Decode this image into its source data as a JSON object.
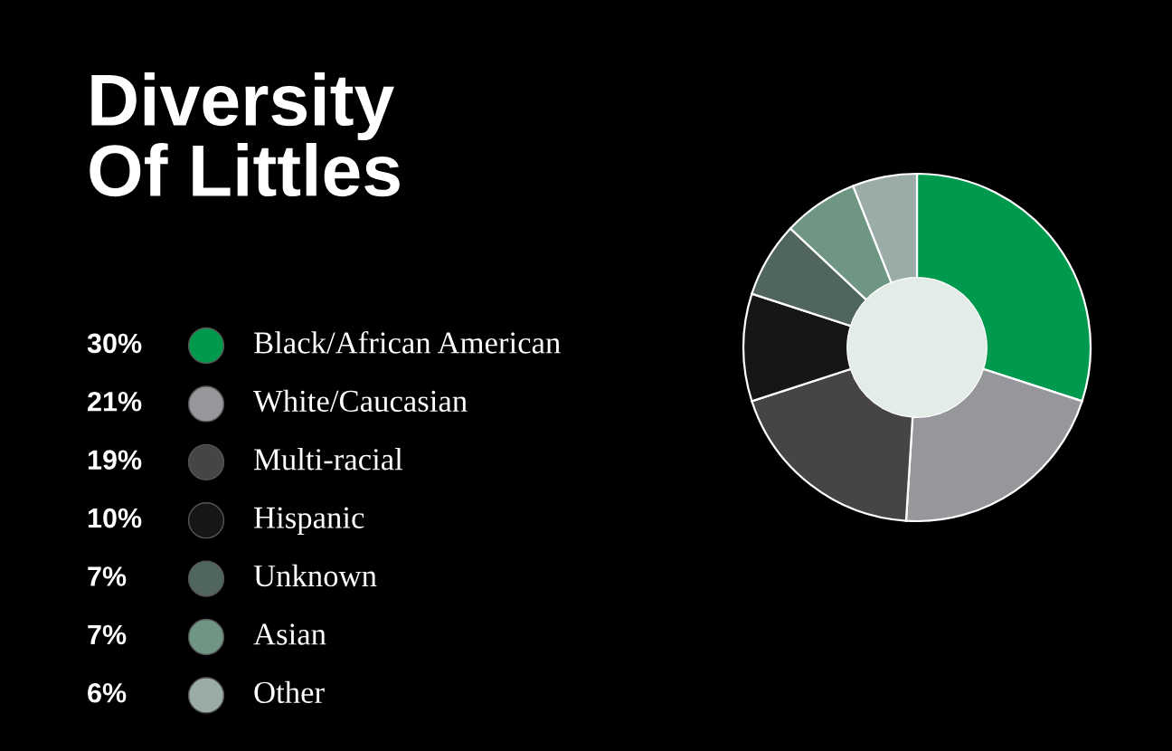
{
  "chart_data": {
    "type": "donut",
    "title": "Diversity\nOf Littles",
    "categories": [
      "Black/African American",
      "White/Caucasian",
      "Multi-racial",
      "Hispanic",
      "Unknown",
      "Asian",
      "Other"
    ],
    "values": [
      30,
      21,
      19,
      10,
      7,
      7,
      6
    ],
    "colors": [
      "#009a4e",
      "#96979b",
      "#464445",
      "#161616",
      "#51655f",
      "#6f9683",
      "#9aaba8"
    ],
    "value_labels": [
      "30%",
      "21%",
      "19%",
      "10%",
      "7%",
      "7%",
      "6%"
    ],
    "legend": "left"
  }
}
